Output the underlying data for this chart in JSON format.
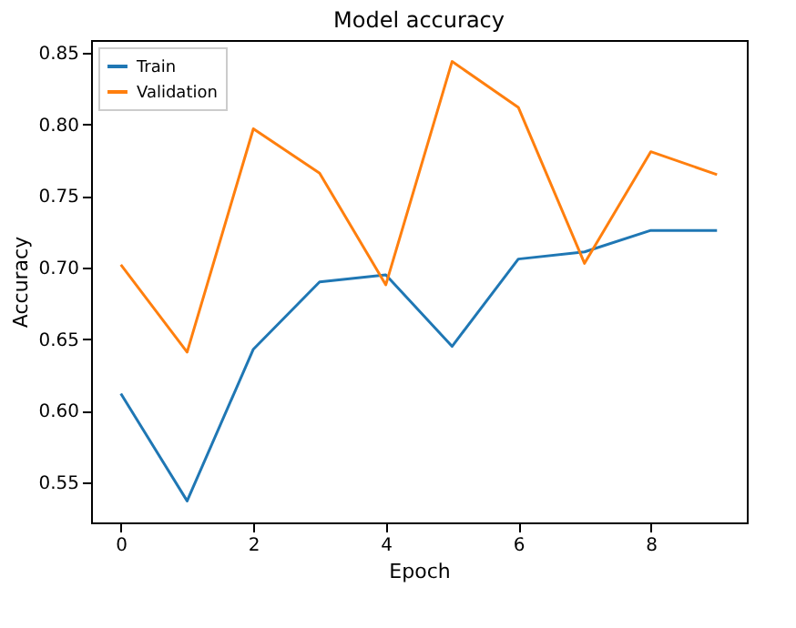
{
  "chart_data": {
    "type": "line",
    "title": "Model accuracy",
    "xlabel": "Epoch",
    "ylabel": "Accuracy",
    "x": [
      0,
      1,
      2,
      3,
      4,
      5,
      6,
      7,
      8,
      9
    ],
    "series": [
      {
        "name": "Train",
        "color": "#1f77b4",
        "values": [
          0.612,
          0.537,
          0.643,
          0.69,
          0.695,
          0.645,
          0.706,
          0.711,
          0.726,
          0.726
        ]
      },
      {
        "name": "Validation",
        "color": "#ff7f0e",
        "values": [
          0.702,
          0.641,
          0.797,
          0.766,
          0.688,
          0.844,
          0.812,
          0.703,
          0.781,
          0.765
        ]
      }
    ],
    "xlim": [
      -0.45,
      9.45
    ],
    "xticks": [
      0,
      2,
      4,
      6,
      8
    ],
    "ylim": [
      0.522,
      0.859
    ],
    "yticks": [
      0.55,
      {
        "value": 0.6,
        "label": "0.60"
      },
      0.65,
      {
        "value": 0.7,
        "label": "0.70"
      },
      0.75,
      {
        "value": 0.8,
        "label": "0.80"
      },
      0.85
    ],
    "legend": "top left",
    "grid": false,
    "marker": "none",
    "line_style": "solid"
  }
}
